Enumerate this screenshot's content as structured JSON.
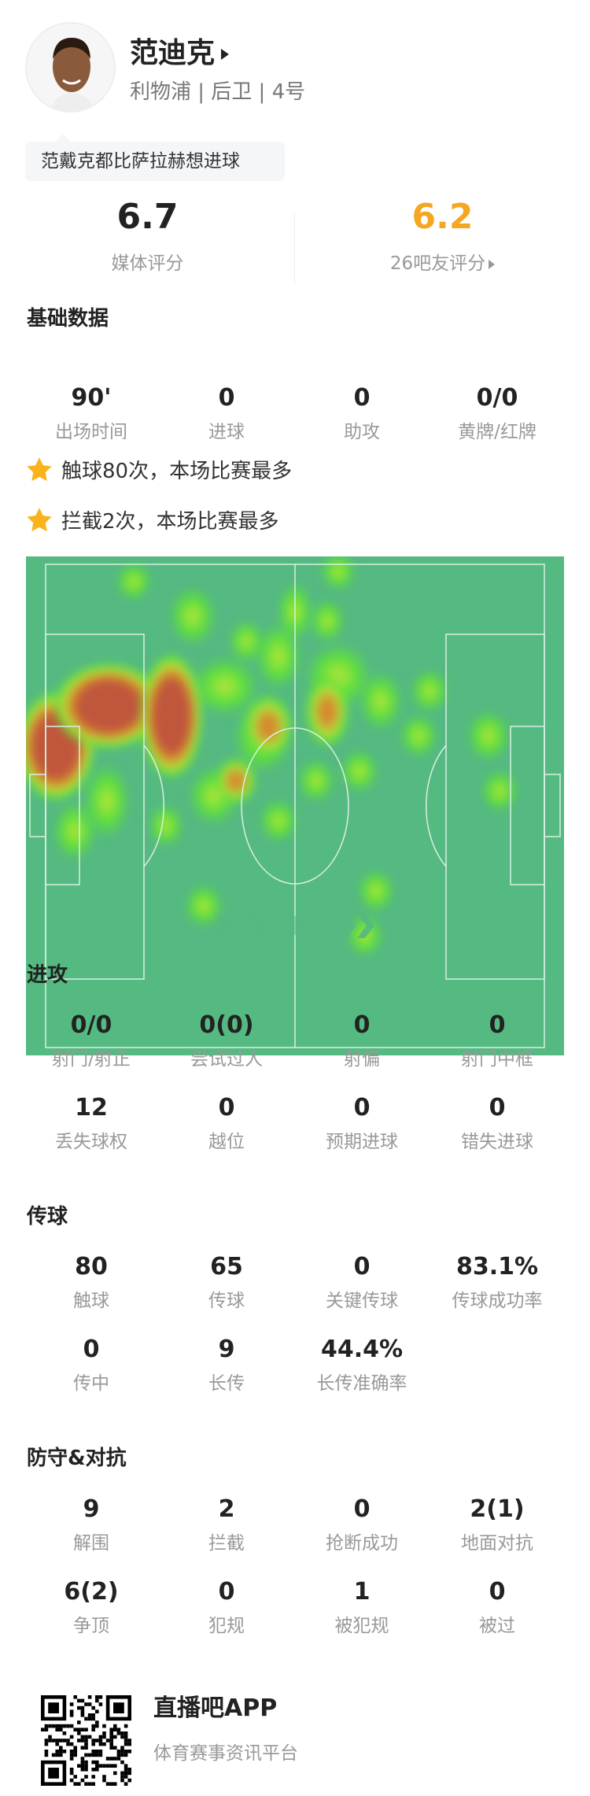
{
  "player": {
    "name": "范迪克",
    "info": "利物浦 | 后卫 | 4号",
    "tag": "范戴克都比萨拉赫想进球"
  },
  "ratings": {
    "media_value": "6.7",
    "media_label": "媒体评分",
    "fan_value": "6.2",
    "fan_label": "26吧友评分",
    "fan_color": "#f5a623"
  },
  "basic": {
    "title": "基础数据",
    "stats": [
      {
        "v": "90'",
        "l": "出场时间"
      },
      {
        "v": "0",
        "l": "进球"
      },
      {
        "v": "0",
        "l": "助攻"
      },
      {
        "v": "0/0",
        "l": "黄牌/红牌"
      }
    ]
  },
  "highlights": [
    "触球80次，本场比赛最多",
    "拦截2次，本场比赛最多"
  ],
  "attack": {
    "title": "进攻",
    "stats": [
      {
        "v": "0/0",
        "l": "射门/射正"
      },
      {
        "v": "0(0)",
        "l": "尝试过人"
      },
      {
        "v": "0",
        "l": "射偏"
      },
      {
        "v": "0",
        "l": "射门中框"
      },
      {
        "v": "12",
        "l": "丢失球权"
      },
      {
        "v": "0",
        "l": "越位"
      },
      {
        "v": "0",
        "l": "预期进球"
      },
      {
        "v": "0",
        "l": "错失进球"
      }
    ]
  },
  "passing": {
    "title": "传球",
    "stats": [
      {
        "v": "80",
        "l": "触球"
      },
      {
        "v": "65",
        "l": "传球"
      },
      {
        "v": "0",
        "l": "关键传球"
      },
      {
        "v": "83.1%",
        "l": "传球成功率"
      },
      {
        "v": "0",
        "l": "传中"
      },
      {
        "v": "9",
        "l": "长传"
      },
      {
        "v": "44.4%",
        "l": "长传准确率"
      }
    ]
  },
  "defense": {
    "title": "防守&对抗",
    "stats": [
      {
        "v": "9",
        "l": "解围"
      },
      {
        "v": "2",
        "l": "拦截"
      },
      {
        "v": "0",
        "l": "抢断成功"
      },
      {
        "v": "2(1)",
        "l": "地面对抗"
      },
      {
        "v": "6(2)",
        "l": "争顶"
      },
      {
        "v": "0",
        "l": "犯规"
      },
      {
        "v": "1",
        "l": "被犯规"
      },
      {
        "v": "0",
        "l": "被过"
      }
    ]
  },
  "footer": {
    "app": "直播吧APP",
    "slogan": "体育赛事资讯平台"
  },
  "colors": {
    "pitch": "#55b982",
    "accent": "#f5a623"
  }
}
